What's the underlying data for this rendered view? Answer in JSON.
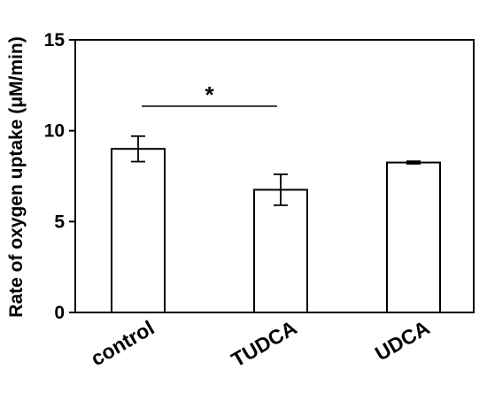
{
  "chart_data": {
    "type": "bar",
    "title": "",
    "xlabel": "",
    "ylabel": "Rate of oxygen uptake (μM/min)",
    "ylim": [
      0,
      15
    ],
    "yticks": [
      0,
      5,
      10,
      15
    ],
    "categories": [
      "control",
      "TUDCA",
      "UDCA"
    ],
    "values": [
      9.0,
      6.75,
      8.25
    ],
    "errors": [
      0.7,
      0.85,
      0.07
    ],
    "grid": false,
    "legend": "none",
    "bar_fill": "#ffffff",
    "bar_stroke": "#000000",
    "annotations": [
      {
        "text": "*",
        "between": [
          "control",
          "TUDCA"
        ]
      }
    ]
  }
}
